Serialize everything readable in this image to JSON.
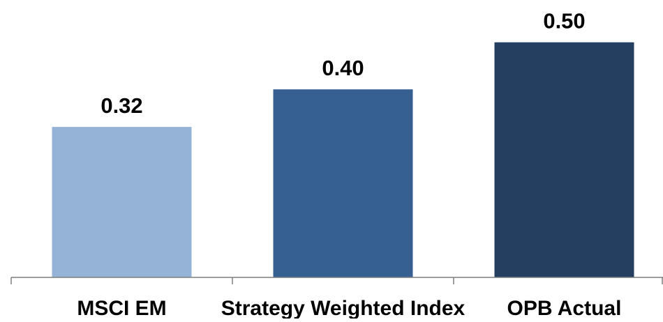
{
  "chart_data": {
    "type": "bar",
    "categories": [
      "MSCI EM",
      "Strategy Weighted Index",
      "OPB Actual"
    ],
    "values": [
      0.32,
      0.4,
      0.5
    ],
    "data_labels": [
      "0.32",
      "0.40",
      "0.50"
    ],
    "bar_colors": [
      "#95B3D7",
      "#376092",
      "#243F60"
    ],
    "axis_color": "#7F7F7F",
    "title": "",
    "xlabel": "",
    "ylabel": "",
    "ylim": [
      0,
      0.59
    ],
    "grid": false,
    "legend": "none"
  }
}
